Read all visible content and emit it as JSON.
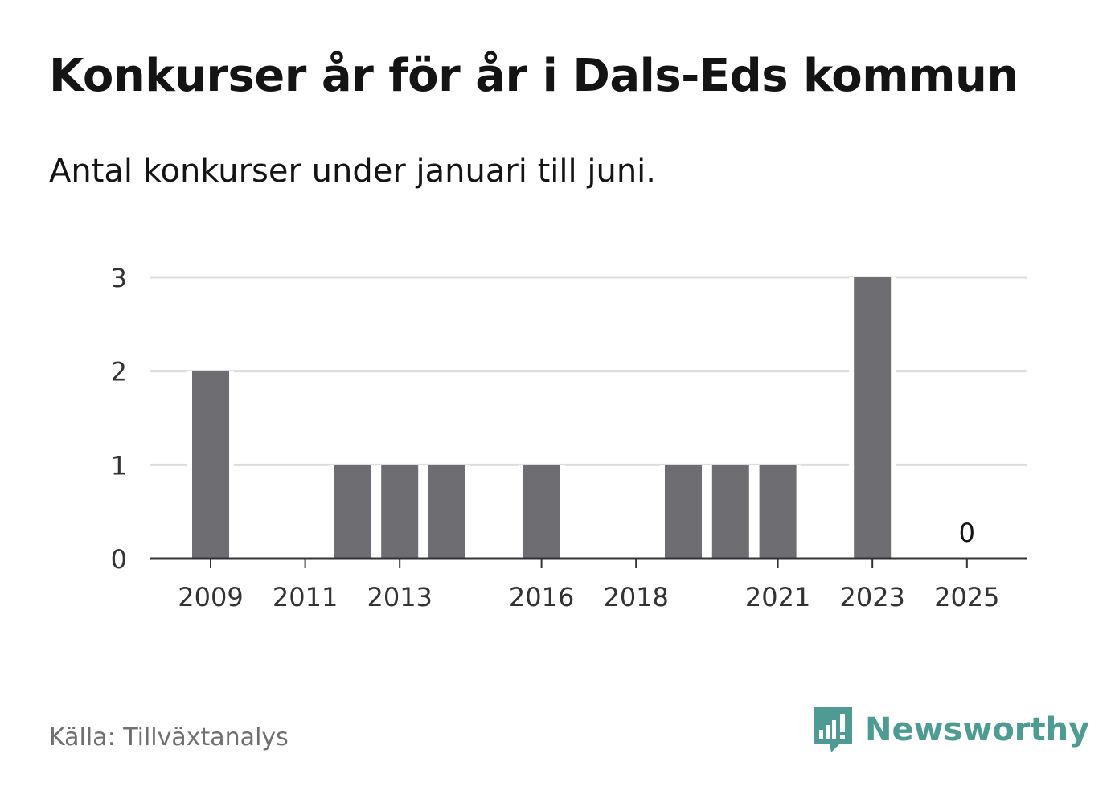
{
  "title": "Konkurser år för år i Dals-Eds kommun",
  "subtitle": "Antal konkurser under januari till juni.",
  "source": "Källa: Tillväxtanalys",
  "brand": {
    "name": "Newsworthy",
    "icon": "newsworthy-logo-icon",
    "color": "#4d9b93"
  },
  "chart_data": {
    "type": "bar",
    "categories": [
      "2009",
      "2010",
      "2011",
      "2012",
      "2013",
      "2014",
      "2015",
      "2016",
      "2017",
      "2018",
      "2019",
      "2020",
      "2021",
      "2022",
      "2023",
      "2024",
      "2025"
    ],
    "values": [
      2,
      0,
      0,
      1,
      1,
      1,
      0,
      1,
      0,
      0,
      1,
      1,
      1,
      0,
      3,
      0,
      0
    ],
    "x_tick_labels": [
      "2009",
      "2011",
      "2013",
      "2016",
      "2018",
      "2021",
      "2023",
      "2025"
    ],
    "y_ticks": [
      0,
      1,
      2,
      3
    ],
    "ylim": [
      0,
      3
    ],
    "annotations": [
      {
        "category": "2025",
        "text": "0"
      }
    ],
    "grid": true,
    "bar_color": "#6e6d72",
    "grid_color": "#dddddd",
    "axis_color": "#333333"
  }
}
